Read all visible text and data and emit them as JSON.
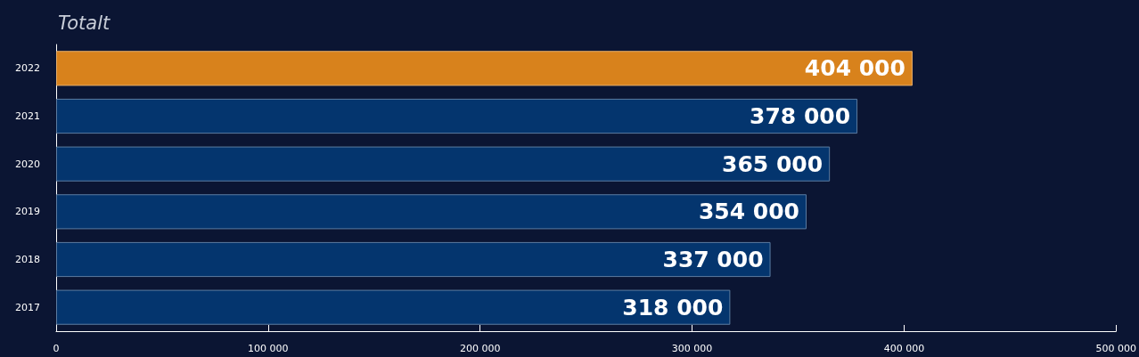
{
  "chart_data": {
    "type": "bar",
    "orientation": "horizontal",
    "title": "Totalt",
    "categories": [
      "2022",
      "2021",
      "2020",
      "2019",
      "2018",
      "2017"
    ],
    "values": [
      404000,
      378000,
      365000,
      354000,
      337000,
      318000
    ],
    "colors": [
      "#d8821c",
      "#04356e",
      "#04356e",
      "#04356e",
      "#04356e",
      "#04356e"
    ],
    "xlim": [
      0,
      500000
    ],
    "xticks": [
      0,
      {
        "value": 100000,
        "label": "100 000"
      },
      {
        "value": 200000,
        "label": "200 000"
      },
      {
        "value": 300000,
        "label": "300 000"
      },
      {
        "value": 400000,
        "label": "400 000"
      },
      {
        "value": 500000,
        "label": "500 000"
      }
    ],
    "data_labels": true,
    "grid": false
  }
}
